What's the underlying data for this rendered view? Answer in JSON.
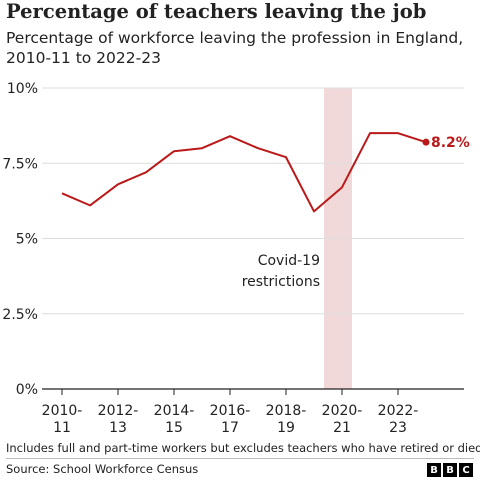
{
  "header": {
    "title": "Percentage of teachers leaving the job",
    "subtitle": "Percentage of workforce leaving the profession in England, 2010-11 to 2022-23"
  },
  "chart_data": {
    "type": "line",
    "title": "Percentage of teachers leaving the job",
    "subtitle": "Percentage of workforce leaving the profession in England, 2010-11 to 2022-23",
    "xlabel": "",
    "ylabel": "",
    "x": [
      "2010-11",
      "2011-12",
      "2012-13",
      "2013-14",
      "2014-15",
      "2015-16",
      "2016-17",
      "2017-18",
      "2018-19",
      "2019-20",
      "2020-21",
      "2021-22",
      "2022-23",
      "2023-24"
    ],
    "x_tick_labels": [
      "2010-11",
      "2012-13",
      "2014-15",
      "2016-17",
      "2018-19",
      "2020-21",
      "2022-23"
    ],
    "y_tick_labels": [
      "10%",
      "7.5%",
      "5%",
      "2.5%",
      "0%"
    ],
    "y_ticks": [
      10,
      7.5,
      5,
      2.5,
      0
    ],
    "ylim": [
      0,
      10
    ],
    "grid": true,
    "series": [
      {
        "name": "",
        "values": [
          6.5,
          6.1,
          6.8,
          7.2,
          7.9,
          8.0,
          8.4,
          8.0,
          7.7,
          5.9,
          6.7,
          8.5,
          8.5,
          8.2
        ]
      }
    ],
    "end_label": "8.2%",
    "shaded_region": {
      "from": "2019-20",
      "to": "2020-21"
    },
    "annotation": [
      "Covid-19",
      "restrictions"
    ],
    "colors": {
      "line": "#bb1919",
      "shade": "#f2d9d9",
      "grid": "#dddddd",
      "axis": "#222222"
    }
  },
  "footer": {
    "note": "Includes full and part-time workers but excludes teachers who have retired or died",
    "source": "Source: School Workforce Census",
    "logo": [
      "B",
      "B",
      "C"
    ]
  }
}
